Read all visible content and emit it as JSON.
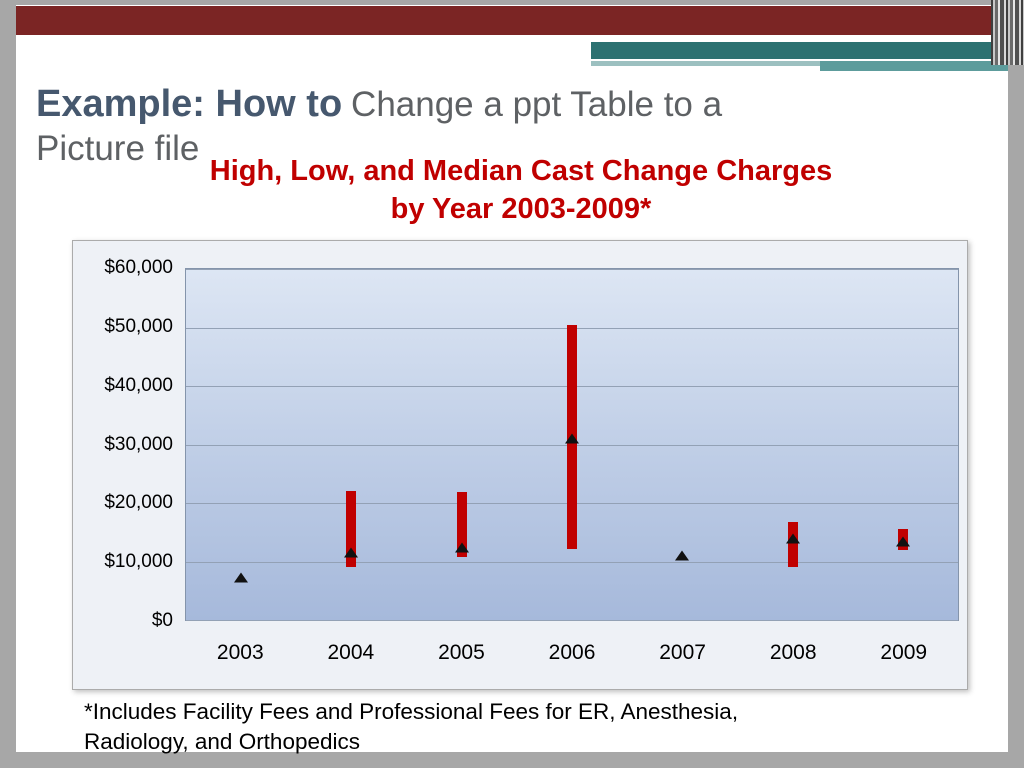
{
  "slide": {
    "title": {
      "lead": "Example: How to",
      "rest": "Change a ppt Table to a Picture file"
    },
    "footnote": "*Includes Facility Fees and Professional Fees for ER, Anesthesia, Radiology, and Orthopedics",
    "colors": {
      "accent_maroon": "#7b2524",
      "accent_teal": "#2c7171",
      "title_blue": "#46586e",
      "title_gray": "#5e6164",
      "chart_title_red": "#c00000"
    }
  },
  "chart_data": {
    "type": "bar",
    "subtype": "high-low-median-stock",
    "title": "High, Low, and Median Cast Change Charges by Year 2003-2009*",
    "title_lines": [
      "High, Low, and Median Cast Change Charges",
      "by Year 2003-2009*"
    ],
    "categories": [
      "2003",
      "2004",
      "2005",
      "2006",
      "2007",
      "2008",
      "2009"
    ],
    "series": [
      {
        "name": "High",
        "values": [
          null,
          22000,
          21800,
          50500,
          null,
          16800,
          15500
        ]
      },
      {
        "name": "Low",
        "values": [
          null,
          9000,
          10700,
          12200,
          null,
          9000,
          12000
        ]
      },
      {
        "name": "Median",
        "values": [
          7200,
          11500,
          12300,
          31000,
          11000,
          13900,
          13400
        ]
      }
    ],
    "xlabel": "",
    "ylabel": "",
    "ylim": [
      0,
      60000
    ],
    "y_ticks": [
      "$60,000",
      "$50,000",
      "$40,000",
      "$30,000",
      "$20,000",
      "$10,000",
      "$0"
    ],
    "grid": true,
    "legend": "none",
    "bar_color": "#c00000",
    "marker_color": "#111111"
  }
}
